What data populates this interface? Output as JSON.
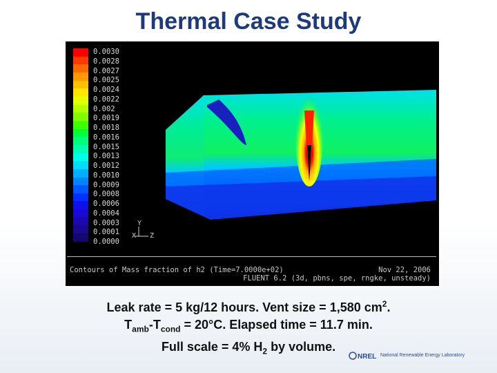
{
  "slide": {
    "title": "Thermal Case Study"
  },
  "figure": {
    "colorbar_colors": [
      "#ff0000",
      "#ff3a00",
      "#ff6a00",
      "#ff9a00",
      "#ffc000",
      "#ffe600",
      "#e4ff00",
      "#b4ff00",
      "#7cff00",
      "#3cff00",
      "#00ff3a",
      "#00ff7a",
      "#00ffb4",
      "#00ffe8",
      "#00dcff",
      "#00b0ff",
      "#0084ff",
      "#0058ff",
      "#0030ff",
      "#1010ee",
      "#1a0ad0",
      "#1a08b0",
      "#1a0890",
      "#140870"
    ],
    "colorbar_ticks": [
      "0.0030",
      "0.0028",
      "0.0027",
      "0.0025",
      "0.0024",
      "0.0022",
      "0.002",
      "0.0019",
      "0.0018",
      "0.0016",
      "0.0015",
      "0.0013",
      "0.0012",
      "0.0010",
      "0.0009",
      "0.0008",
      "0.0006",
      "0.0004",
      "0.0003",
      "0.0001",
      "0.0000"
    ],
    "axes": {
      "y": "Y",
      "x": "X",
      "z": "Z"
    },
    "footer_line1": "Contours of Mass fraction of h2  (Time=7.0000e+02)",
    "footer_date": "Nov 22, 2006",
    "footer_line2": "FLUENT 6.2 (3d, pbns, spe, rngke, unsteady)"
  },
  "caption": {
    "line1": "Leak rate = 5 kg/12 hours. Vent size = 1,580 cm",
    "line1_sup": "2",
    "line1_end": ".",
    "line2_t1": "T",
    "line2_sub1": "amb",
    "line2_mid": "-T",
    "line2_sub2": "cond",
    "line2_end": " = 20°C.  Elapsed time = 11.7 min.",
    "line3_a": "Full scale = 4% H",
    "line3_sub": "2",
    "line3_b": " by volume."
  },
  "logo": {
    "mark": "NREL",
    "org": "National Renewable Energy Laboratory"
  }
}
